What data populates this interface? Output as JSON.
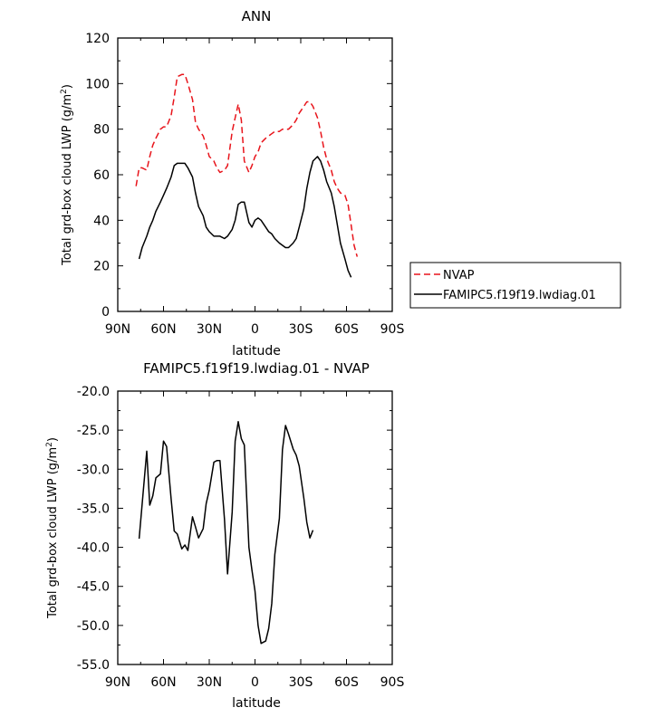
{
  "chart_data": [
    {
      "type": "line",
      "title": "ANN",
      "xlabel": "latitude",
      "ylabel": "Total grd-box cloud LWP (g/m²)",
      "xlim": [
        -90,
        90
      ],
      "ylim": [
        0,
        120
      ],
      "xticks": [
        -90,
        -60,
        -30,
        0,
        30,
        60,
        90
      ],
      "xtick_labels": [
        "90N",
        "60N",
        "30N",
        "0",
        "30S",
        "60S",
        "90S"
      ],
      "yticks": [
        0,
        20,
        40,
        60,
        80,
        100,
        120
      ],
      "ytick_labels": [
        "0",
        "20",
        "40",
        "60",
        "80",
        "100",
        "120"
      ],
      "grid": false,
      "legend_position": "right",
      "series": [
        {
          "name": "NVAP",
          "color": "#e8141b",
          "dash": true,
          "x": [
            -78,
            -76,
            -74,
            -71,
            -69,
            -67,
            -65,
            -62,
            -60,
            -58,
            -55,
            -53,
            -51,
            -48,
            -46,
            -44,
            -41,
            -39,
            -37,
            -34,
            -32,
            -30,
            -27,
            -25,
            -23,
            -20,
            -18,
            -15,
            -13,
            -11,
            -9,
            -7,
            -4,
            -2,
            0,
            2,
            4,
            7,
            9,
            11,
            13,
            16,
            18,
            20,
            22,
            25,
            27,
            29,
            32,
            34,
            36,
            38,
            41,
            43,
            45,
            47,
            50,
            52,
            54,
            56,
            59,
            61,
            63,
            65,
            67,
            70,
            72,
            74,
            76
          ],
          "values": [
            55,
            63,
            63,
            62,
            68,
            73,
            76,
            80,
            81,
            81,
            86,
            94,
            103,
            104,
            104,
            100,
            93,
            83,
            80,
            77,
            73,
            68,
            66,
            63,
            61,
            62,
            64,
            79,
            85,
            91,
            84,
            66,
            61,
            64,
            68,
            70,
            74,
            76,
            77,
            78,
            79,
            79,
            80,
            80,
            80,
            82,
            84,
            87,
            90,
            92,
            92,
            90,
            85,
            79,
            72,
            67,
            62,
            57,
            54,
            52,
            51,
            47,
            38,
            29,
            24,
            null,
            null,
            null,
            null
          ]
        },
        {
          "name": "FAMIPC5.f19f19.lwdiag.01",
          "color": "#000000",
          "dash": false,
          "x": [
            -76,
            -74,
            -71,
            -69,
            -67,
            -65,
            -62,
            -60,
            -58,
            -55,
            -53,
            -51,
            -48,
            -46,
            -44,
            -41,
            -39,
            -37,
            -34,
            -32,
            -30,
            -27,
            -25,
            -23,
            -20,
            -18,
            -15,
            -13,
            -11,
            -9,
            -7,
            -4,
            -2,
            0,
            2,
            4,
            7,
            9,
            11,
            13,
            16,
            18,
            20,
            22,
            25,
            27,
            29,
            32,
            34,
            36,
            38,
            41,
            43,
            45,
            47,
            50,
            52,
            54,
            56,
            59,
            61,
            63,
            65,
            67
          ],
          "values": [
            23,
            28,
            33,
            37,
            40,
            44,
            48,
            51,
            54,
            59,
            64,
            65,
            65,
            65,
            63,
            59,
            52,
            46,
            42,
            37,
            35,
            33,
            33,
            33,
            32,
            33,
            36,
            40,
            47,
            48,
            48,
            39,
            37,
            40,
            41,
            40,
            37,
            35,
            34,
            32,
            30,
            29,
            28,
            28,
            30,
            32,
            37,
            45,
            54,
            61,
            66,
            68,
            66,
            62,
            57,
            52,
            46,
            38,
            30,
            23,
            18,
            15,
            null,
            null
          ]
        }
      ]
    },
    {
      "type": "line",
      "title": "FAMIPC5.f19f19.lwdiag.01 - NVAP",
      "xlabel": "latitude",
      "ylabel": "Total grd-box cloud LWP (g/m²)",
      "xlim": [
        -90,
        90
      ],
      "ylim": [
        -55,
        -20
      ],
      "xticks": [
        -90,
        -60,
        -30,
        0,
        30,
        60,
        90
      ],
      "xtick_labels": [
        "90N",
        "60N",
        "30N",
        "0",
        "30S",
        "60S",
        "90S"
      ],
      "yticks": [
        -55,
        -50,
        -45,
        -40,
        -35,
        -30,
        -25,
        -20
      ],
      "ytick_labels": [
        "-55.0",
        "-50.0",
        "-45.0",
        "-40.0",
        "-35.0",
        "-30.0",
        "-25.0",
        "-20.0"
      ],
      "grid": false,
      "series": [
        {
          "name": "",
          "color": "#000000",
          "dash": false,
          "x": [
            -76,
            -74,
            -71,
            -69,
            -67,
            -65,
            -62,
            -60,
            -58,
            -55,
            -53,
            -51,
            -48,
            -46,
            -44,
            -41,
            -39,
            -37,
            -34,
            -32,
            -30,
            -27,
            -25,
            -23,
            -20,
            -18,
            -15,
            -13,
            -11,
            -9,
            -7,
            -4,
            -2,
            0,
            2,
            4,
            7,
            9,
            11,
            13,
            16,
            18,
            20,
            22,
            25,
            27,
            29,
            32,
            34,
            36,
            38,
            41,
            43,
            45,
            47,
            50,
            52,
            54,
            56,
            59,
            61,
            63,
            65,
            67
          ],
          "values": [
            -38.9,
            -34.5,
            -27.7,
            -34.6,
            -33.4,
            -31.1,
            -30.6,
            -26.4,
            -27.1,
            -33.8,
            -37.9,
            -38.3,
            -40.2,
            -39.7,
            -40.4,
            -36.1,
            -37.4,
            -38.8,
            -37.6,
            -34.4,
            -32.7,
            -29.1,
            -28.9,
            -28.9,
            -36.4,
            -43.4,
            -35.5,
            -26.4,
            -23.9,
            -26.1,
            -26.9,
            -40.0,
            -42.9,
            -45.6,
            -50.0,
            -52.3,
            -52.0,
            -50.4,
            -47.2,
            -40.9,
            -36.3,
            -27.5,
            -24.4,
            -25.5,
            -27.4,
            -28.2,
            -29.6,
            -33.7,
            -36.8,
            -38.8,
            -37.8,
            null,
            null,
            null,
            null,
            null,
            null,
            null,
            null,
            null,
            null,
            null,
            null,
            null
          ]
        }
      ]
    }
  ]
}
